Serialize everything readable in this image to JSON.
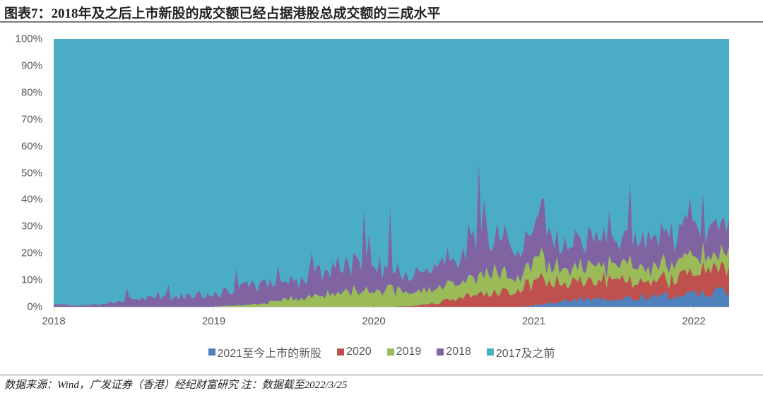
{
  "title": "图表7：2018年及之后上市新股的成交额已经占据港股总成交额的三成水平",
  "source_note": "数据来源：Wind，广发证券（香港）经纪财富研究  注：数据截至2022/3/25",
  "chart_data": {
    "type": "area",
    "stacked": true,
    "normalized": true,
    "title": "图表7：2018年及之后上市新股的成交额已经占据港股总成交额的三成水平",
    "xlabel": "",
    "ylabel": "",
    "ylim": [
      0,
      100
    ],
    "y_ticks": [
      "0%",
      "10%",
      "20%",
      "30%",
      "40%",
      "50%",
      "60%",
      "70%",
      "80%",
      "90%",
      "100%"
    ],
    "x_ticks": [
      "2018",
      "2019",
      "2020",
      "2021",
      "2022"
    ],
    "x_range": [
      "2018-01",
      "2022-03-25"
    ],
    "grid": false,
    "legend_position": "bottom",
    "x": [
      "2018-01",
      "2018-03",
      "2018-05",
      "2018-07",
      "2018-09",
      "2018-11",
      "2019-01",
      "2019-03",
      "2019-05",
      "2019-07",
      "2019-09",
      "2019-11",
      "2020-01",
      "2020-03",
      "2020-05",
      "2020-07",
      "2020-09",
      "2020-11",
      "2021-01",
      "2021-02",
      "2021-04",
      "2021-06",
      "2021-08",
      "2021-10",
      "2021-12",
      "2022-02",
      "2022-03"
    ],
    "series": [
      {
        "name": "2021至今上市的新股",
        "color": "#4F81BD",
        "values": [
          0,
          0,
          0,
          0,
          0,
          0,
          0,
          0,
          0,
          0,
          0,
          0,
          0,
          0,
          0,
          0,
          0,
          0,
          0,
          1,
          3,
          3,
          3,
          4,
          4,
          5,
          6
        ]
      },
      {
        "name": "2020",
        "color": "#C0504D",
        "values": [
          0,
          0,
          0,
          0,
          0,
          0,
          0,
          0,
          0,
          0,
          0,
          0,
          0,
          0,
          0.5,
          2,
          4,
          5,
          7,
          9,
          6,
          7,
          7,
          6,
          7,
          8,
          8
        ]
      },
      {
        "name": "2019",
        "color": "#9BBB59",
        "values": [
          0,
          0,
          0,
          0,
          0,
          0,
          0,
          0.5,
          1,
          3,
          4,
          5,
          7,
          6,
          5,
          6,
          6,
          7,
          6,
          7,
          5,
          6,
          6,
          5,
          6,
          6,
          6
        ]
      },
      {
        "name": "2018",
        "color": "#8064A2",
        "values": [
          1,
          0.5,
          1,
          3,
          3,
          4,
          5,
          6,
          7,
          7,
          8,
          10,
          10,
          8,
          7,
          9,
          12,
          13,
          13,
          11,
          10,
          10,
          11,
          10,
          11,
          11,
          11
        ]
      },
      {
        "name": "2017及之前",
        "color": "#4BACC6",
        "values": [
          99,
          99.5,
          99,
          97,
          97,
          96,
          95,
          93.5,
          92,
          90,
          88,
          85,
          83,
          86,
          87.5,
          83,
          78,
          75,
          74,
          72,
          76,
          74,
          73,
          75,
          72,
          70,
          69
        ]
      }
    ]
  },
  "legend": [
    {
      "label": "2021至今上市的新股",
      "color": "#4F81BD"
    },
    {
      "label": "2020",
      "color": "#C0504D"
    },
    {
      "label": "2019",
      "color": "#9BBB59"
    },
    {
      "label": "2018",
      "color": "#8064A2"
    },
    {
      "label": "2017及之前",
      "color": "#4BACC6"
    }
  ]
}
